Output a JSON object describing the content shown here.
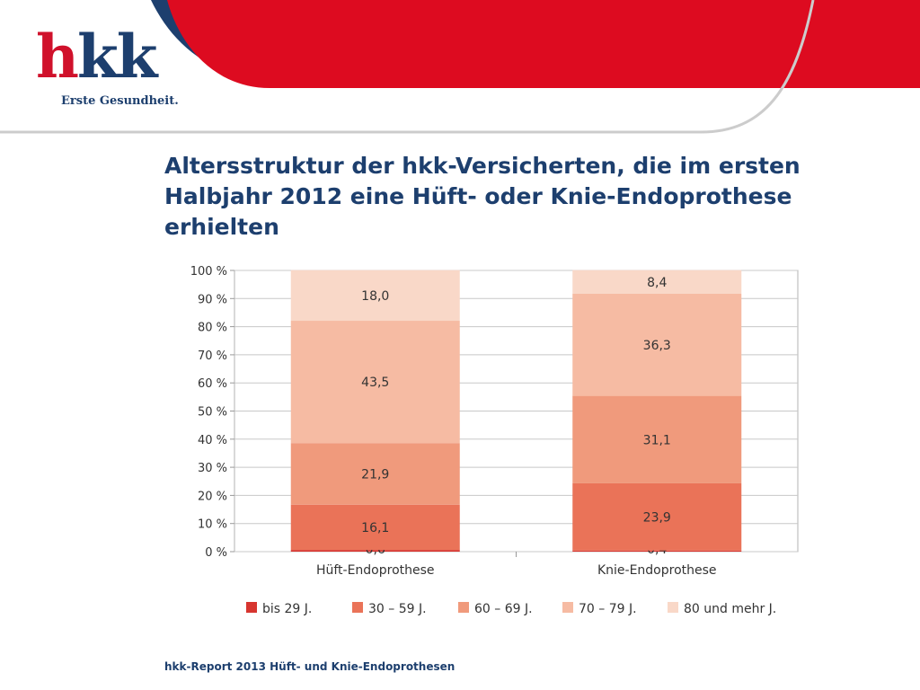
{
  "header": {
    "logo_text": "hkk",
    "tagline": "Erste Gesundheit.",
    "accent_color": "#dd0b20",
    "brand_color": "#1d3f6e"
  },
  "title": "Altersstruktur der hkk-Versicherten, die im ersten Halbjahr 2012 eine Hüft- oder Knie-Endoprothese erhielten",
  "footer": "hkk-Report 2013 Hüft- und Knie-Endoprothesen",
  "chart_data": {
    "type": "bar",
    "stacked": true,
    "percent": true,
    "categories": [
      "Hüft-Endoprothese",
      "Knie-Endoprothese"
    ],
    "series": [
      {
        "name": "bis 29 J.",
        "color": "#d7352f",
        "values": [
          0.6,
          0.4
        ],
        "labels": [
          "0,6",
          "0,4"
        ]
      },
      {
        "name": "30 – 59 J.",
        "color": "#ea7358",
        "values": [
          16.1,
          23.9
        ],
        "labels": [
          "16,1",
          "23,9"
        ]
      },
      {
        "name": "60 – 69 J.",
        "color": "#f09a7c",
        "values": [
          21.9,
          31.1
        ],
        "labels": [
          "21,9",
          "31,1"
        ]
      },
      {
        "name": "70 – 79 J.",
        "color": "#f6bba3",
        "values": [
          43.5,
          36.3
        ],
        "labels": [
          "43,5",
          "36,3"
        ]
      },
      {
        "name": "80 und mehr J.",
        "color": "#f9d8c8",
        "values": [
          18.0,
          8.4
        ],
        "labels": [
          "18,0",
          "8,4"
        ]
      }
    ],
    "y_ticks": [
      "0 %",
      "10 %",
      "20 %",
      "30 %",
      "40 %",
      "50 %",
      "60 %",
      "70 %",
      "80 %",
      "90 %",
      "100 %"
    ],
    "ylim": [
      0,
      100
    ],
    "grid": true,
    "legend_position": "bottom"
  }
}
